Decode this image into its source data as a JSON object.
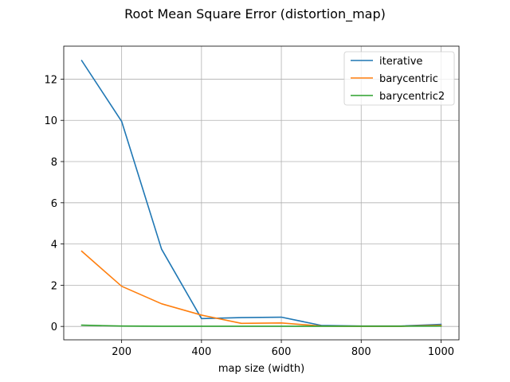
{
  "chart_data": {
    "type": "line",
    "title": "Root Mean Square Error (distortion_map)",
    "xlabel": "map size (width)",
    "ylabel": "",
    "x": [
      100,
      200,
      300,
      400,
      500,
      600,
      700,
      800,
      900,
      1000
    ],
    "xlim": [
      55,
      1045
    ],
    "ylim": [
      -0.65,
      13.6
    ],
    "xticks": [
      200,
      400,
      600,
      800,
      1000
    ],
    "yticks": [
      0,
      2,
      4,
      6,
      8,
      10,
      12
    ],
    "grid": true,
    "legend_position": "top-right",
    "series": [
      {
        "name": "iterative",
        "color": "#1f77b4",
        "values": [
          12.9,
          9.95,
          3.75,
          0.38,
          0.43,
          0.45,
          0.05,
          0.02,
          0.02,
          0.1
        ]
      },
      {
        "name": "barycentric",
        "color": "#ff7f0e",
        "values": [
          3.65,
          1.95,
          1.1,
          0.55,
          0.15,
          0.17,
          0.02,
          0.01,
          0.01,
          0.05
        ]
      },
      {
        "name": "barycentric2",
        "color": "#2ca02c",
        "values": [
          0.06,
          0.02,
          0.01,
          0.01,
          0.01,
          0.01,
          0.01,
          0.01,
          0.01,
          0.02
        ]
      }
    ]
  }
}
